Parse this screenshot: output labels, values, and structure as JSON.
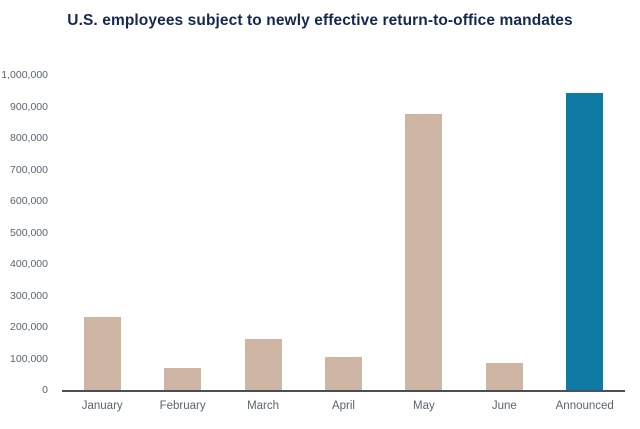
{
  "title": "U.S. employees subject to newly effective return-to-office mandates",
  "colors": {
    "bar_default": "#cfb6a4",
    "bar_highlight": "#0f7ba4",
    "title_text": "#15294e",
    "axis_label": "#5a6470",
    "axis_line": "#4a5058",
    "background": "#ffffff"
  },
  "chart_data": {
    "type": "bar",
    "title": "U.S. employees subject to newly effective return-to-office mandates",
    "categories": [
      "January",
      "February",
      "March",
      "April",
      "May",
      "June",
      "Announced"
    ],
    "values": [
      232000,
      70000,
      161000,
      104000,
      876000,
      87000,
      944000
    ],
    "highlight_category": "Announced",
    "xlabel": "",
    "ylabel": "",
    "ylim": [
      0,
      1000000
    ],
    "yticks": [
      0,
      100000,
      200000,
      300000,
      400000,
      500000,
      600000,
      700000,
      800000,
      900000,
      1000000
    ],
    "ytick_labels": [
      "0",
      "100,000",
      "200,000",
      "300,000",
      "400,000",
      "500,000",
      "600,000",
      "700,000",
      "800,000",
      "900,000",
      "1,000,000"
    ],
    "grid": false,
    "legend": false
  }
}
